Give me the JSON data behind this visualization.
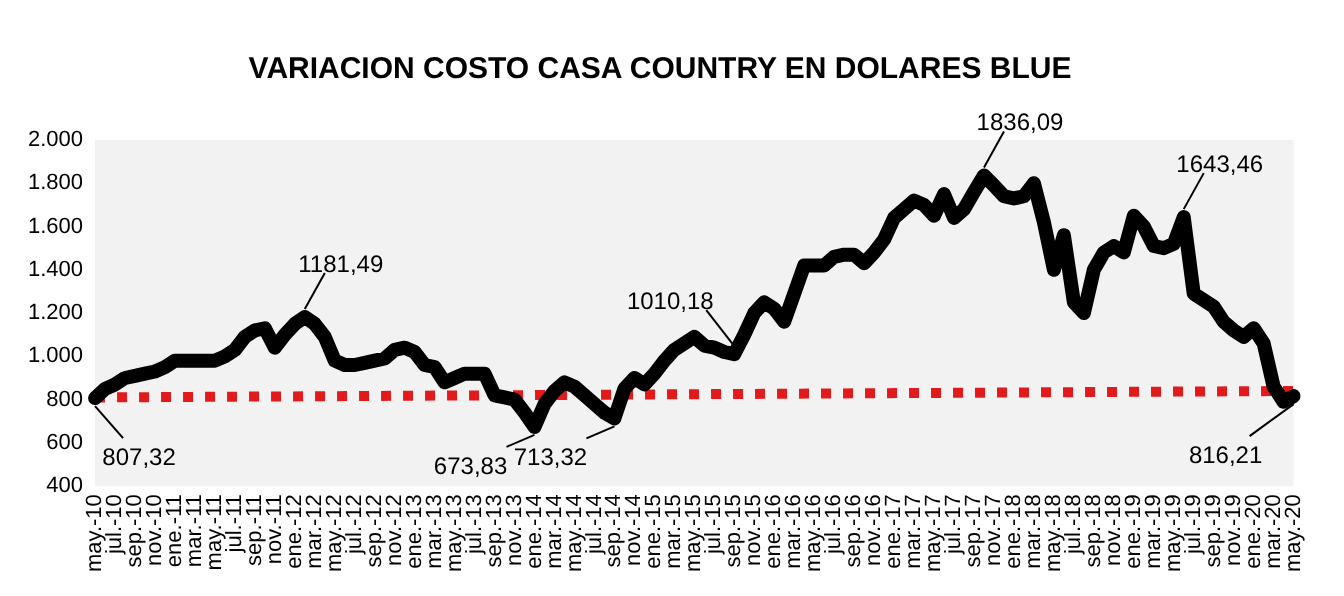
{
  "chart_data": {
    "type": "line",
    "title": "VARIACION COSTO CASA COUNTRY EN DOLARES BLUE",
    "categories": [
      "may.-10",
      null,
      "jul.-10",
      null,
      "sep.-10",
      null,
      "nov.-10",
      null,
      "ene.-11",
      null,
      "mar.-11",
      null,
      "may.-11",
      null,
      "jul.-11",
      null,
      "sep.-11",
      null,
      "nov.-11",
      null,
      "ene.-12",
      null,
      "mar.-12",
      null,
      "may.-12",
      null,
      "jul.-12",
      null,
      "sep.-12",
      null,
      "nov.-12",
      null,
      "ene.-13",
      null,
      "mar.-13",
      null,
      "may.-13",
      null,
      "jul.-13",
      null,
      "sep.-13",
      null,
      "nov.-13",
      null,
      "ene.-14",
      null,
      "mar.-14",
      null,
      "may.-14",
      null,
      "jul.-14",
      null,
      "sep.-14",
      null,
      "nov.-14",
      null,
      "ene.-15",
      null,
      "mar.-15",
      null,
      "may.-15",
      null,
      "jul.-15",
      null,
      "sep.-15",
      null,
      "nov.-15",
      null,
      "ene.-16",
      null,
      "mar.-16",
      null,
      "may.-16",
      null,
      "jul.-16",
      null,
      "sep.-16",
      null,
      "nov.-16",
      null,
      "ene.-17",
      null,
      "mar.-17",
      null,
      "may.-17",
      null,
      "jul.-17",
      null,
      "sep.-17",
      null,
      "nov.-17",
      null,
      "ene.-18",
      null,
      "mar.-18",
      null,
      "may.-18",
      null,
      "jul.-18",
      null,
      "sep.-18",
      null,
      "nov.-18",
      null,
      "ene.-19",
      null,
      "mar.-19",
      null,
      "may.-19",
      null,
      "jul.-19",
      null,
      "sep.-19",
      null,
      "nov.-19",
      null,
      "ene.-20",
      null,
      "mar.-20",
      null,
      "may.-20"
    ],
    "series": [
      {
        "color": "#000000",
        "line_style": "solid",
        "values": [
          807.32,
          850,
          870,
          900,
          910,
          920,
          930,
          950,
          980,
          980,
          980,
          980,
          980,
          1000,
          1030,
          1090,
          1120,
          1130,
          1040,
          1100,
          1150,
          1181.49,
          1150,
          1090,
          980,
          960,
          960,
          970,
          980,
          990,
          1030,
          1040,
          1020,
          960,
          950,
          880,
          900,
          920,
          920,
          920,
          820,
          810,
          800,
          740,
          673.83,
          780,
          840,
          880,
          860,
          820,
          780,
          740,
          713.32,
          850,
          900,
          870,
          920,
          980,
          1030,
          1060,
          1090,
          1050,
          1040,
          1020,
          1010.18,
          1100,
          1200,
          1250,
          1220,
          1160,
          1290,
          1420,
          1420,
          1420,
          1460,
          1470,
          1470,
          1430,
          1480,
          1540,
          1640,
          1680,
          1720,
          1700,
          1650,
          1750,
          1640,
          1680,
          1760,
          1836.09,
          1790,
          1740,
          1730,
          1740,
          1800,
          1620,
          1400,
          1560,
          1250,
          1200,
          1400,
          1480,
          1510,
          1480,
          1650,
          1600,
          1510,
          1500,
          1520,
          1643.46,
          1290,
          1260,
          1230,
          1160,
          1120,
          1090,
          1130,
          1060,
          860,
          790,
          816.21
        ],
        "value_labels": [
          "807,32",
          null,
          null,
          null,
          null,
          null,
          null,
          null,
          null,
          null,
          null,
          null,
          null,
          null,
          null,
          null,
          null,
          null,
          null,
          null,
          null,
          "1181,49",
          null,
          null,
          null,
          null,
          null,
          null,
          null,
          null,
          null,
          null,
          null,
          null,
          null,
          null,
          null,
          null,
          null,
          null,
          null,
          null,
          null,
          null,
          "673,83",
          null,
          null,
          null,
          null,
          null,
          null,
          null,
          "713,32",
          null,
          null,
          null,
          null,
          null,
          null,
          null,
          null,
          null,
          null,
          null,
          "1010,18",
          null,
          null,
          null,
          null,
          null,
          null,
          null,
          null,
          null,
          null,
          null,
          null,
          null,
          null,
          null,
          null,
          null,
          null,
          null,
          null,
          null,
          null,
          null,
          null,
          "1836,09",
          null,
          null,
          null,
          null,
          null,
          null,
          null,
          null,
          null,
          null,
          null,
          null,
          null,
          null,
          null,
          null,
          null,
          null,
          null,
          "1643,46",
          null,
          null,
          null,
          null,
          null,
          null,
          null,
          null,
          null,
          null,
          "816,21"
        ]
      },
      {
        "color": "#e31a1c",
        "line_style": "dotted",
        "values": [
          810,
          null,
          null,
          null,
          null,
          null,
          null,
          null,
          null,
          null,
          null,
          null,
          null,
          null,
          null,
          null,
          null,
          null,
          null,
          null,
          null,
          null,
          null,
          null,
          null,
          null,
          null,
          null,
          null,
          null,
          null,
          null,
          null,
          null,
          null,
          null,
          null,
          null,
          null,
          null,
          null,
          null,
          null,
          null,
          null,
          null,
          null,
          null,
          null,
          null,
          null,
          null,
          null,
          null,
          null,
          null,
          null,
          null,
          null,
          null,
          null,
          null,
          null,
          null,
          null,
          null,
          null,
          null,
          null,
          null,
          null,
          null,
          null,
          null,
          null,
          null,
          null,
          null,
          null,
          null,
          null,
          null,
          null,
          null,
          null,
          null,
          null,
          null,
          null,
          null,
          null,
          null,
          null,
          null,
          null,
          null,
          null,
          null,
          null,
          null,
          null,
          null,
          null,
          null,
          null,
          null,
          null,
          null,
          null,
          null,
          null,
          null,
          null,
          null,
          null,
          null,
          null,
          null,
          null,
          null,
          840
        ]
      }
    ],
    "ylim": [
      400,
      2000
    ],
    "yticks": [
      400,
      600,
      800,
      {
        "value": 1000,
        "label": "1.000"
      },
      {
        "value": 1200,
        "label": "1.200"
      },
      {
        "value": 1400,
        "label": "1.400"
      },
      {
        "value": 1600,
        "label": "1.600"
      },
      {
        "value": 1800,
        "label": "1.800"
      },
      {
        "value": 2000,
        "label": "2.000"
      }
    ],
    "grid": false,
    "legend": false,
    "marker": "none"
  }
}
